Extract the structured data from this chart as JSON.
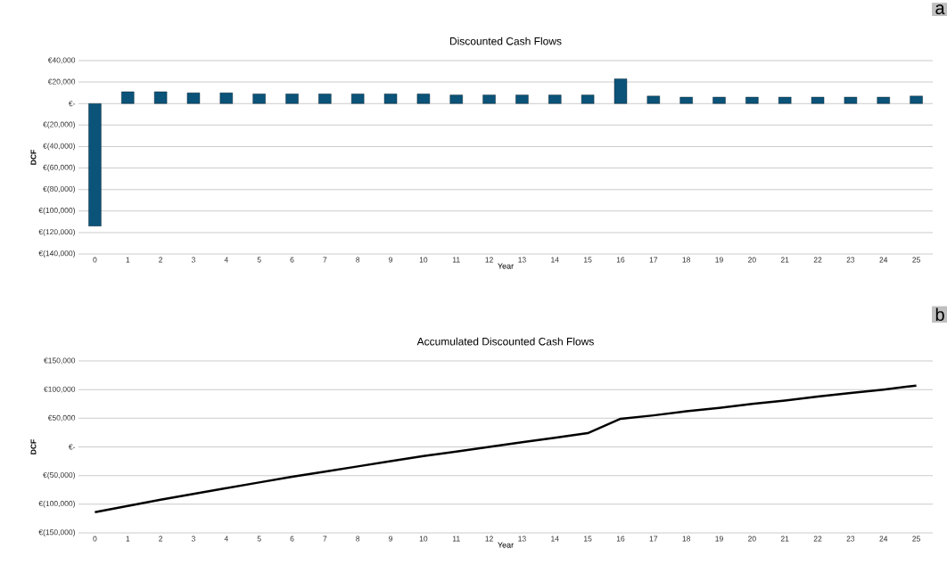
{
  "chart_data": [
    {
      "type": "bar",
      "title": "Discounted Cash Flows",
      "xlabel": "Year",
      "ylabel": "DCF",
      "categories": [
        "0",
        "1",
        "2",
        "3",
        "4",
        "5",
        "6",
        "7",
        "8",
        "9",
        "10",
        "11",
        "12",
        "13",
        "14",
        "15",
        "16",
        "17",
        "18",
        "19",
        "20",
        "21",
        "22",
        "23",
        "24",
        "25"
      ],
      "values": [
        -114000,
        11000,
        11000,
        10000,
        10000,
        9000,
        9000,
        9000,
        9000,
        9000,
        9000,
        8000,
        8000,
        8000,
        8000,
        8000,
        23000,
        7000,
        6000,
        6000,
        6000,
        6000,
        6000,
        6000,
        6000,
        7000
      ],
      "color": "#0b5379",
      "ylim": [
        -140000,
        40000
      ],
      "yticks": [
        {
          "value": -140000,
          "label": "€(140,000)"
        },
        {
          "value": -120000,
          "label": "€(120,000)"
        },
        {
          "value": -100000,
          "label": "€(100,000)"
        },
        {
          "value": -80000,
          "label": "€(80,000)"
        },
        {
          "value": -60000,
          "label": "€(60,000)"
        },
        {
          "value": -40000,
          "label": "€(40,000)"
        },
        {
          "value": -20000,
          "label": "€(20,000)"
        },
        {
          "value": 0,
          "label": "€-"
        },
        {
          "value": 20000,
          "label": "€20,000"
        },
        {
          "value": 40000,
          "label": "€40,000"
        }
      ],
      "grid": "y",
      "annotations": [
        "a"
      ]
    },
    {
      "type": "line",
      "title": "Accumulated Discounted Cash Flows",
      "xlabel": "Year",
      "ylabel": "DCF",
      "categories": [
        "0",
        "1",
        "2",
        "3",
        "4",
        "5",
        "6",
        "7",
        "8",
        "9",
        "10",
        "11",
        "12",
        "13",
        "14",
        "15",
        "16",
        "17",
        "18",
        "19",
        "20",
        "21",
        "22",
        "23",
        "24",
        "25"
      ],
      "values": [
        -114000,
        -103000,
        -92000,
        -82000,
        -72000,
        -62000,
        -52000,
        -43000,
        -34000,
        -25000,
        -16000,
        -8000,
        0,
        8000,
        16000,
        24000,
        49000,
        55000,
        62000,
        68000,
        75000,
        81000,
        88000,
        94000,
        100000,
        107000
      ],
      "color": "#000000",
      "marker": "none",
      "ylim": [
        -150000,
        150000
      ],
      "yticks": [
        {
          "value": -150000,
          "label": "€(150,000)"
        },
        {
          "value": -100000,
          "label": "€(100,000)"
        },
        {
          "value": -50000,
          "label": "€(50,000)"
        },
        {
          "value": 0,
          "label": "€-"
        },
        {
          "value": 50000,
          "label": "€50,000"
        },
        {
          "value": 100000,
          "label": "€100,000"
        },
        {
          "value": 150000,
          "label": "€150,000"
        }
      ],
      "grid": "y",
      "annotations": [
        "b"
      ]
    }
  ]
}
